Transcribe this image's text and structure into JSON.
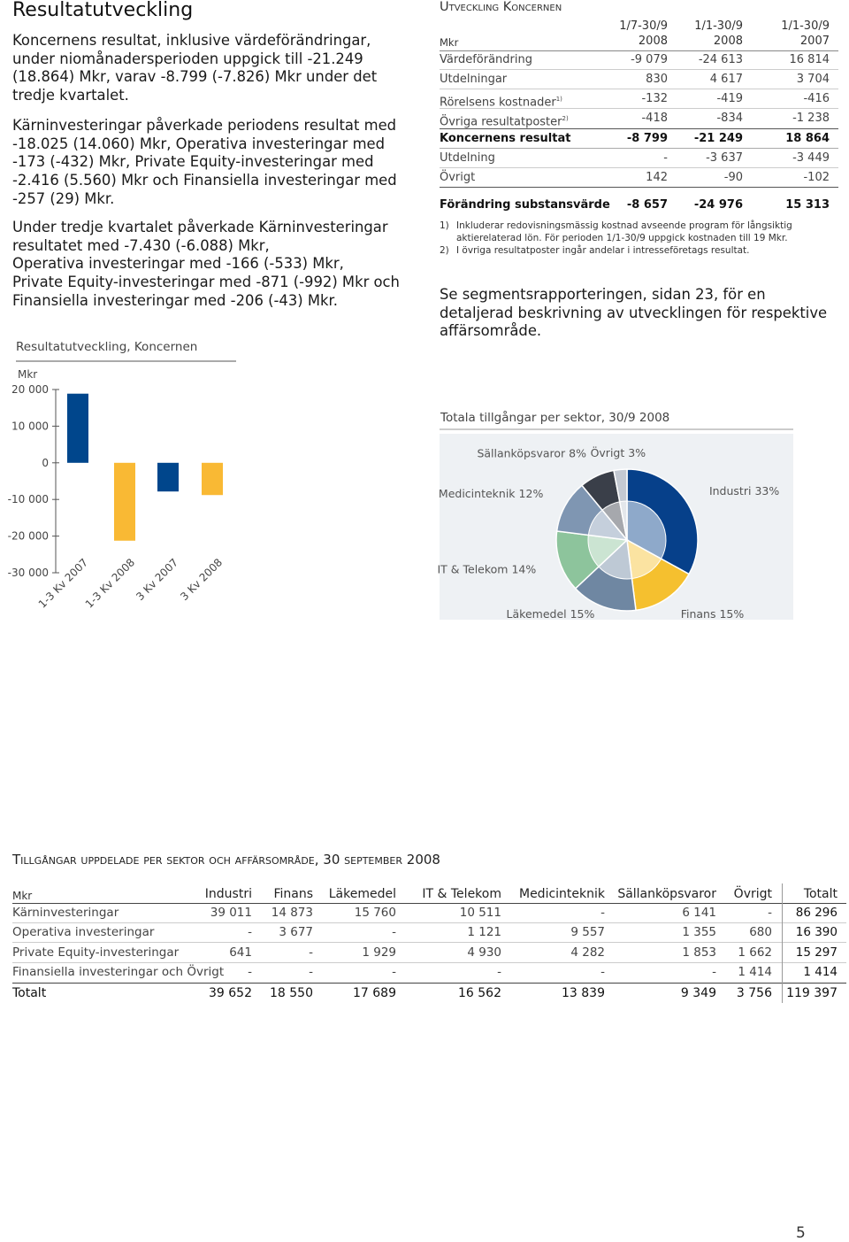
{
  "header": {
    "title": "Resultatutveckling"
  },
  "paragraphs": [
    [
      "Koncernens resultat, inklusive värdeförändringar,",
      "under niomånadersperioden uppgick till -21.249",
      "(18.864) Mkr, varav -8.799 (-7.826) Mkr under det",
      "tredje kvartalet."
    ],
    [
      "Kärninvesteringar påverkade periodens resultat med",
      "-18.025 (14.060) Mkr, Operativa investeringar med",
      "-173 (-432) Mkr, Private Equity-investeringar med",
      "-2.416 (5.560) Mkr och Finansiella investeringar med",
      "-257 (29) Mkr."
    ],
    [
      "Under tredje kvartalet påverkade Kärninvesteringar",
      "resultatet med -7.430 (-6.088) Mkr,",
      "Operativa investeringar med -166 (-533) Mkr,",
      "Private Equity-investeringar med -871 (-992) Mkr och",
      "Finansiella investeringar med -206 (-43) Mkr."
    ]
  ],
  "chart_data": [
    {
      "type": "bar",
      "title": "Resultatutveckling, Koncernen",
      "y_label": "Mkr",
      "categories": [
        "1-3 Kv 2007",
        "1-3 Kv 2008",
        "3 Kv 2007",
        "3 Kv 2008"
      ],
      "values": [
        18864,
        -21249,
        -7826,
        -8799
      ],
      "colors": [
        "#00468c",
        "#f9b934",
        "#00468c",
        "#f9b934"
      ],
      "ylim": [
        -30000,
        20000
      ],
      "yticks": [
        {
          "value": 20000,
          "label": "20 000"
        },
        {
          "value": 10000,
          "label": "10 000"
        },
        0,
        {
          "value": -10000,
          "label": "-10 000"
        },
        {
          "value": -20000,
          "label": "-20 000"
        },
        {
          "value": -30000,
          "label": "-30 000"
        }
      ],
      "grid": false
    },
    {
      "type": "pie",
      "title": "Totala tillgångar per sektor, 30/9 2008",
      "categories": [
        "Industri",
        "Finans",
        "Läkemedel",
        "IT & Telekom",
        "Medicinteknik",
        "Sällanköpsvaror",
        "Övrigt"
      ],
      "values": [
        33,
        15,
        15,
        14,
        12,
        8,
        3
      ],
      "value_labels": [
        "33%",
        "15%",
        "15%",
        "14%",
        "12%",
        "8%",
        "3%"
      ],
      "colors": [
        "#06408a",
        "#f5c02f",
        "#6f87a2",
        "#8dc49c",
        "#7f96b2",
        "#3a3f49",
        "#c3c9d2"
      ]
    }
  ],
  "result_table": {
    "title": "Utveckling Koncernen",
    "unit": "Mkr",
    "columns": [
      [
        "1/7-30/9",
        "2008"
      ],
      [
        "1/1-30/9",
        "2008"
      ],
      [
        "1/1-30/9",
        "2007"
      ]
    ],
    "rows": [
      {
        "label": "Värdeförändring",
        "values": [
          "-9 079",
          "-24 613",
          "16 814"
        ]
      },
      {
        "label": "Utdelningar",
        "values": [
          "830",
          "4 617",
          "3 704"
        ]
      },
      {
        "label": "Rörelsens kostnader",
        "note": "1)",
        "values": [
          "-132",
          "-419",
          "-416"
        ]
      },
      {
        "label": "Övriga resultatposter",
        "note": "2)",
        "values": [
          "-418",
          "-834",
          "-1 238"
        ]
      },
      {
        "label": "Koncernens resultat",
        "values": [
          "-8 799",
          "-21 249",
          "18 864"
        ]
      },
      {
        "label": "Utdelning",
        "values": [
          "-",
          "-3 637",
          "-3 449"
        ]
      },
      {
        "label": "Övrigt",
        "values": [
          "142",
          "-90",
          "-102"
        ]
      },
      {
        "label": "Förändring substansvärde",
        "values": [
          "-8 657",
          "-24 976",
          "15 313"
        ]
      }
    ],
    "footnotes": [
      {
        "marker": "1)",
        "lines": [
          "Inkluderar redovisningsmässig kostnad avseende program för långsiktig",
          "aktierelaterad lön. För perioden 1/1-30/9 uppgick kostnaden till 19 Mkr."
        ]
      },
      {
        "marker": "2)",
        "lines": [
          "I övriga resultatposter ingår andelar i intresseföretags resultat."
        ]
      }
    ]
  },
  "segment_note": [
    "Se segmentsrapporteringen, sidan 23, för en",
    "detaljerad beskrivning av utvecklingen för respektive",
    "affärsområde."
  ],
  "assets_table": {
    "title": "Tillgångar uppdelade per sektor och affärsområde, 30 september 2008",
    "unit": "Mkr",
    "columns": [
      "Industri",
      "Finans",
      "Läkemedel",
      "IT & Telekom",
      "Medicinteknik",
      "Sällanköpsvaror",
      "Övrigt",
      "Totalt"
    ],
    "rows": [
      {
        "label": "Kärninvesteringar",
        "values": [
          "39 011",
          "14 873",
          "15 760",
          "10 511",
          "-",
          "6 141",
          "-",
          "86 296"
        ]
      },
      {
        "label": "Operativa investeringar",
        "values": [
          "-",
          "3 677",
          "-",
          "1 121",
          "9 557",
          "1 355",
          "680",
          "16 390"
        ]
      },
      {
        "label": "Private Equity-investeringar",
        "values": [
          "641",
          "-",
          "1 929",
          "4 930",
          "4 282",
          "1 853",
          "1 662",
          "15 297"
        ]
      },
      {
        "label": "Finansiella investeringar och Övrigt",
        "values": [
          "-",
          "-",
          "-",
          "-",
          "-",
          "-",
          "1 414",
          "1 414"
        ]
      },
      {
        "label": "Totalt",
        "values": [
          "39 652",
          "18 550",
          "17 689",
          "16 562",
          "13 839",
          "9 349",
          "3 756",
          "119 397"
        ]
      }
    ]
  },
  "page_number": "5"
}
